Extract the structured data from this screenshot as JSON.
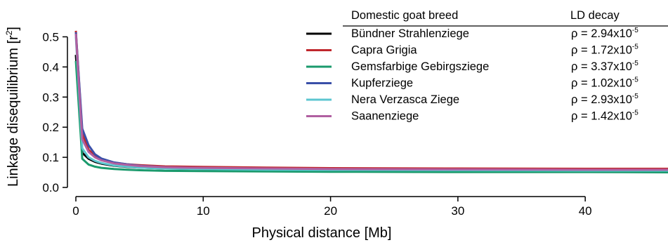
{
  "chart_data": {
    "type": "line",
    "title": "",
    "xlabel": "Physical distance [Mb]",
    "ylabel_main": "Linkage disequilibrium [r",
    "ylabel_sup": "2",
    "ylabel_close": "]",
    "xlim": [
      0,
      46.5
    ],
    "ylim": [
      0,
      0.55
    ],
    "xticks": [
      0,
      10,
      20,
      30,
      40
    ],
    "xtick_labels": [
      "0",
      "10",
      "20",
      "30",
      "40"
    ],
    "yticks": [
      0.0,
      0.1,
      0.2,
      0.3,
      0.4,
      0.5
    ],
    "ytick_labels": [
      "0.0",
      "0.1",
      "0.2",
      "0.3",
      "0.4",
      "0.5"
    ],
    "grid": false,
    "legend_position": "top-right",
    "legend_header": {
      "breed": "Domestic goat breed",
      "decay": "LD decay"
    },
    "rho_symbol": "ρ =",
    "rho_base": "x10",
    "rho_exp": "-5",
    "series": [
      {
        "name": "Bündner Strahlenziege",
        "color": "#000000",
        "rho_coef": "2.94",
        "x": [
          0,
          0.5,
          1,
          1.5,
          2,
          3,
          4,
          5,
          7,
          10,
          15,
          20,
          30,
          40,
          46.5
        ],
        "y": [
          0.44,
          0.115,
          0.095,
          0.085,
          0.079,
          0.072,
          0.068,
          0.066,
          0.063,
          0.061,
          0.059,
          0.058,
          0.057,
          0.056,
          0.056
        ]
      },
      {
        "name": "Capra Grigia",
        "color": "#c0272d",
        "rho_coef": "1.72",
        "x": [
          0,
          0.5,
          1,
          1.5,
          2,
          3,
          4,
          5,
          7,
          10,
          15,
          20,
          30,
          40,
          46.5
        ],
        "y": [
          0.52,
          0.18,
          0.125,
          0.105,
          0.093,
          0.082,
          0.077,
          0.074,
          0.07,
          0.068,
          0.066,
          0.064,
          0.063,
          0.062,
          0.062
        ]
      },
      {
        "name": "Gemsfarbige Gebirgsziege",
        "color": "#1a9a6c",
        "rho_coef": "3.37",
        "x": [
          0,
          0.5,
          1,
          1.5,
          2,
          3,
          4,
          5,
          7,
          10,
          15,
          20,
          30,
          40,
          46.5
        ],
        "y": [
          0.42,
          0.095,
          0.076,
          0.069,
          0.065,
          0.061,
          0.059,
          0.057,
          0.055,
          0.054,
          0.053,
          0.052,
          0.051,
          0.051,
          0.05
        ]
      },
      {
        "name": "Kupferziege",
        "color": "#3a4fa8",
        "rho_coef": "1.02",
        "x": [
          0,
          0.5,
          1,
          1.5,
          2,
          3,
          4,
          5,
          7,
          10,
          15,
          20,
          30,
          40,
          46.5
        ],
        "y": [
          0.515,
          0.195,
          0.14,
          0.11,
          0.096,
          0.083,
          0.077,
          0.072,
          0.067,
          0.064,
          0.061,
          0.06,
          0.059,
          0.058,
          0.058
        ]
      },
      {
        "name": "Nera Verzasca Ziege",
        "color": "#5cc6d0",
        "rho_coef": "2.93",
        "x": [
          0,
          0.5,
          1,
          1.5,
          2,
          3,
          4,
          5,
          7,
          10,
          15,
          20,
          30,
          40,
          46.5
        ],
        "y": [
          0.5,
          0.13,
          0.1,
          0.088,
          0.081,
          0.073,
          0.069,
          0.066,
          0.063,
          0.061,
          0.059,
          0.058,
          0.057,
          0.056,
          0.056
        ]
      },
      {
        "name": "Saanenziege",
        "color": "#b05fa0",
        "rho_coef": "1.42",
        "x": [
          0,
          0.5,
          1,
          1.5,
          2,
          3,
          4,
          5,
          7,
          10,
          15,
          20,
          30,
          40,
          46.5
        ],
        "y": [
          0.51,
          0.16,
          0.118,
          0.1,
          0.09,
          0.08,
          0.075,
          0.071,
          0.067,
          0.065,
          0.063,
          0.061,
          0.06,
          0.059,
          0.059
        ]
      }
    ]
  }
}
